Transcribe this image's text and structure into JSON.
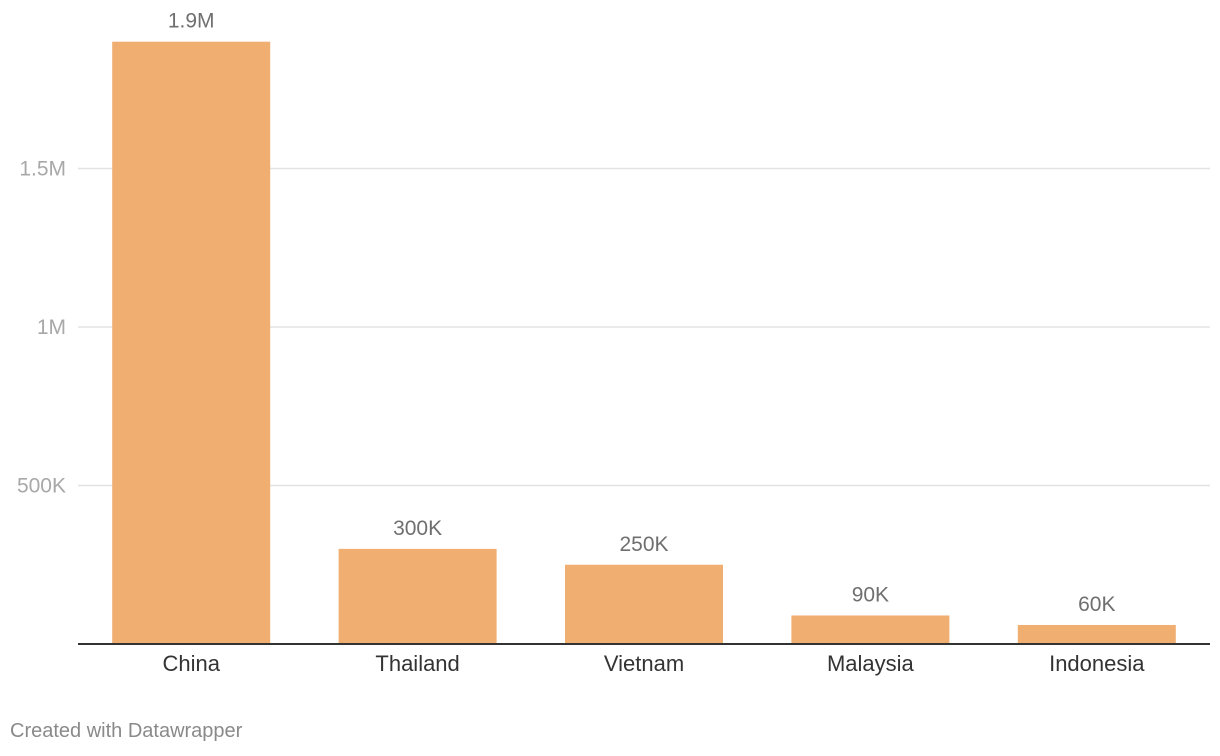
{
  "chart_data": {
    "type": "bar",
    "categories": [
      "China",
      "Thailand",
      "Vietnam",
      "Malaysia",
      "Indonesia"
    ],
    "values": [
      1900000,
      300000,
      250000,
      90000,
      60000
    ],
    "value_labels": [
      "1.9M",
      "300K",
      "250K",
      "90K",
      "60K"
    ],
    "title": "",
    "xlabel": "",
    "ylabel": "",
    "ylim": [
      0,
      2000000
    ],
    "yticks": [
      {
        "value": 500000,
        "label": "500K"
      },
      {
        "value": 1000000,
        "label": "1M"
      },
      {
        "value": 1500000,
        "label": "1.5M"
      }
    ],
    "grid": true,
    "legend": "none",
    "colors": {
      "bar": "#f0af71",
      "gridline": "#e3e3e3",
      "baseline": "#333333",
      "tick_label": "#a8a8a8",
      "category_label": "#333333",
      "value_label": "#6f6f6f"
    }
  },
  "footer": {
    "credit": "Created with Datawrapper"
  }
}
